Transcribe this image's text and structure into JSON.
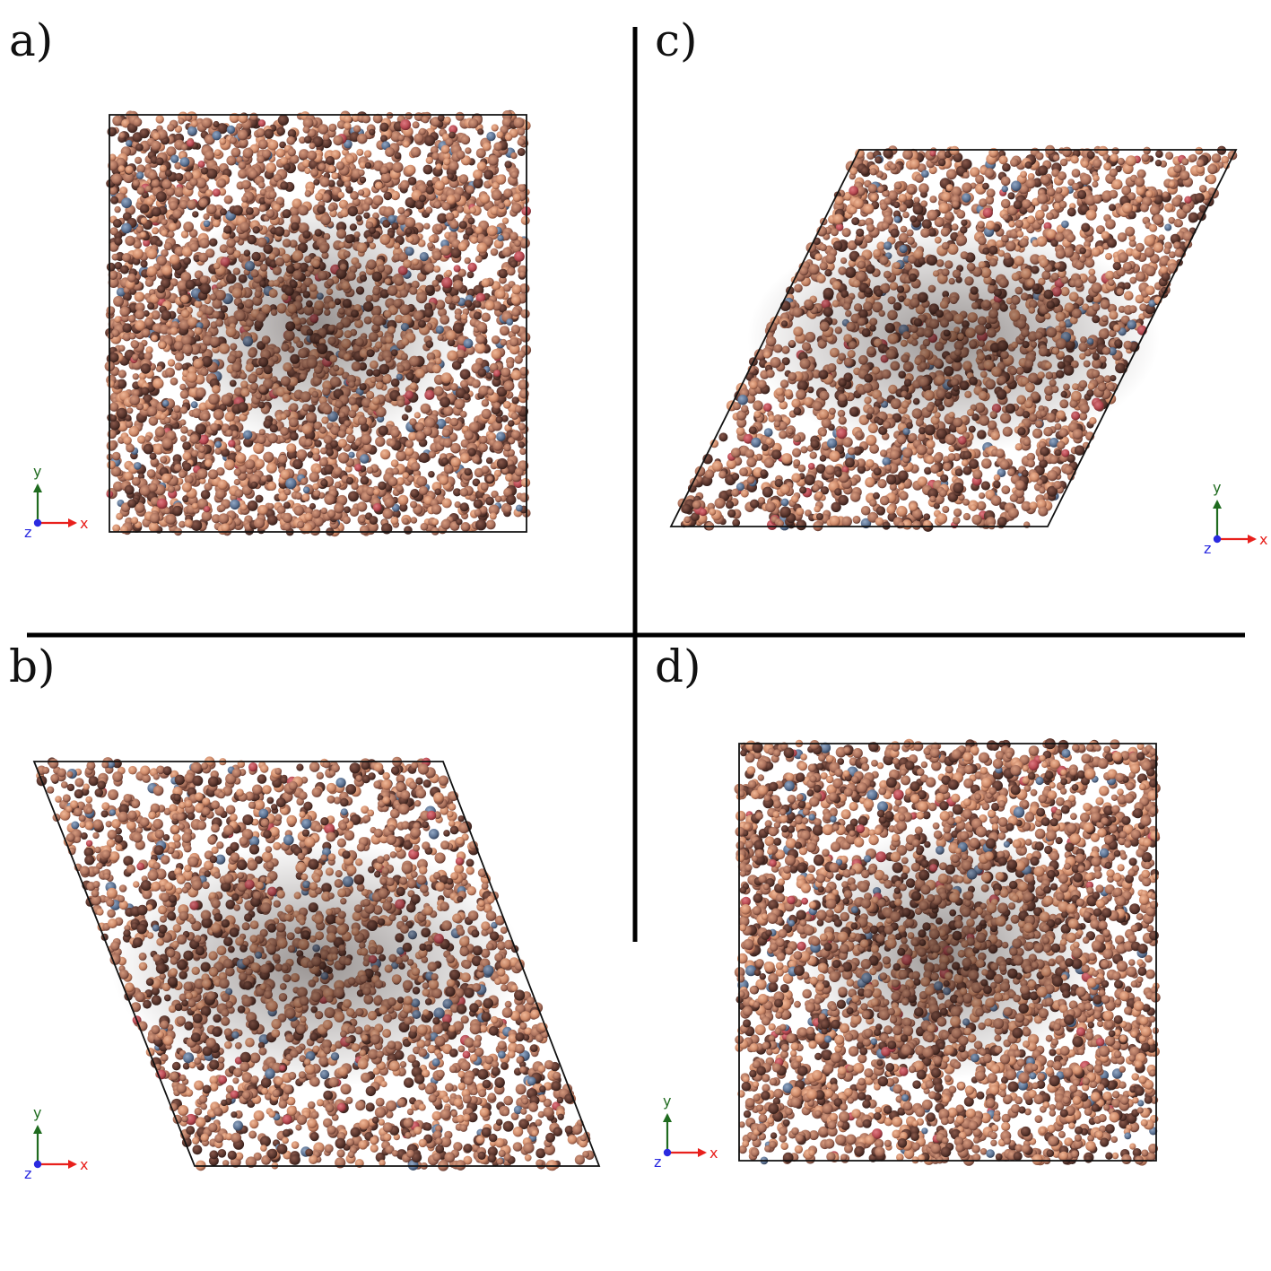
{
  "figure": {
    "panels": [
      {
        "label": "a)"
      },
      {
        "label": "b)"
      },
      {
        "label": "c)"
      },
      {
        "label": "d)"
      }
    ],
    "axis_triad": {
      "x_label": "x",
      "y_label": "y",
      "z_label": "z",
      "x_color": "#e8201c",
      "y_color": "#1f6b1f",
      "z_color": "#2a2ae0"
    },
    "colors": {
      "particle_base": "#a9705c",
      "particle_dark": "#4a2a24",
      "particle_light": "#d4906e",
      "particle_accent_red": "#b84a52",
      "particle_accent_blue": "#5d7393",
      "cell_outline": "#111111",
      "divider": "#000000"
    }
  }
}
